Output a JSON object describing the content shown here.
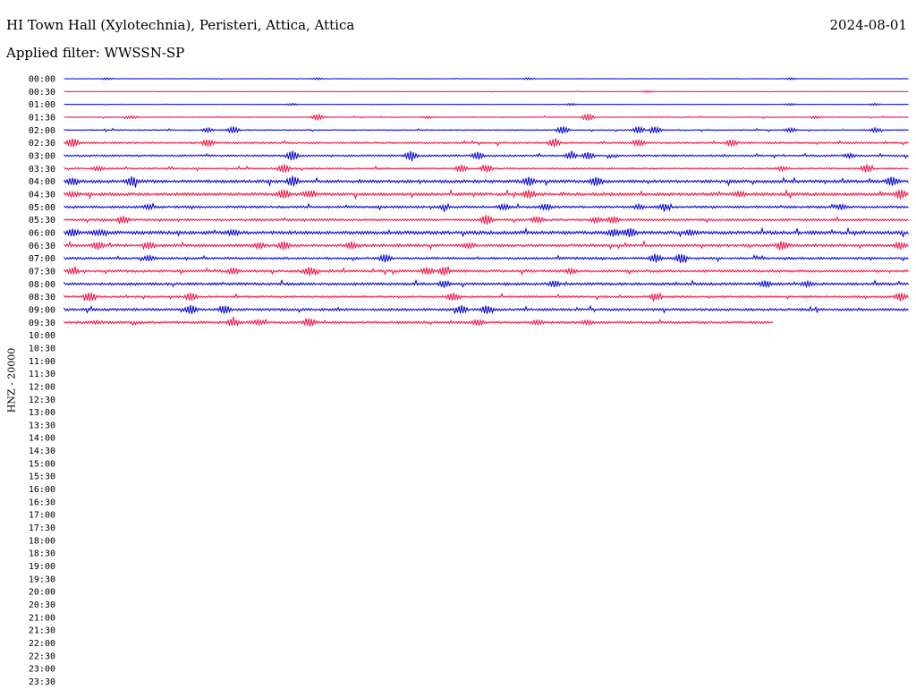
{
  "header": {
    "title": "HI Town Hall (Xylotechnia), Peristeri, Attica, Attica",
    "date": "2024-08-01",
    "filter": "Applied filter: WWSSN-SP"
  },
  "y_axis_label": "HNZ - 20000",
  "colors": {
    "even_rows": "#0000cc",
    "odd_rows": "#ee1144",
    "background": "#fefefe"
  },
  "chart_data": {
    "type": "line",
    "title": "HI Town Hall (Xylotechnia), Peristeri, Attica, Attica",
    "xlabel": "",
    "ylabel": "HNZ - 20000",
    "row_labels": [
      "00:00",
      "00:30",
      "01:00",
      "01:30",
      "02:00",
      "02:30",
      "03:00",
      "03:30",
      "04:00",
      "04:30",
      "05:00",
      "05:30",
      "06:00",
      "06:30",
      "07:00",
      "07:30",
      "08:00",
      "08:30",
      "09:00",
      "09:30",
      "10:00",
      "10:30",
      "11:00",
      "11:30",
      "12:00",
      "12:30",
      "13:00",
      "13:30",
      "14:00",
      "14:30",
      "15:00",
      "15:30",
      "16:00",
      "16:30",
      "17:00",
      "17:30",
      "18:00",
      "18:30",
      "19:00",
      "19:30",
      "20:00",
      "20:30",
      "21:00",
      "21:30",
      "22:00",
      "22:30",
      "23:00",
      "23:30"
    ],
    "row_minutes": 30,
    "recorded_rows": 20,
    "last_row_fraction": 0.84,
    "noise_level": [
      0.2,
      0.2,
      0.2,
      0.5,
      0.6,
      1.0,
      1.0,
      0.9,
      1.6,
      1.6,
      1.2,
      1.2,
      1.8,
      1.5,
      1.2,
      1.3,
      1.4,
      1.1,
      1.3,
      1.3
    ],
    "events": [
      [
        [
          0.05,
          1
        ],
        [
          0.3,
          1
        ],
        [
          0.55,
          1
        ],
        [
          0.86,
          1
        ]
      ],
      [
        [
          0.69,
          1
        ]
      ],
      [
        [
          0.27,
          1
        ],
        [
          0.6,
          1
        ],
        [
          0.86,
          1
        ],
        [
          0.96,
          1
        ]
      ],
      [
        [
          0.08,
          1.2
        ],
        [
          0.3,
          3
        ],
        [
          0.43,
          1
        ],
        [
          0.62,
          3.5
        ],
        [
          0.89,
          1
        ]
      ],
      [
        [
          0.17,
          2
        ],
        [
          0.2,
          3.5
        ],
        [
          0.59,
          4
        ],
        [
          0.68,
          3.5
        ],
        [
          0.7,
          3.5
        ],
        [
          0.86,
          2
        ],
        [
          0.96,
          2
        ]
      ],
      [
        [
          0.01,
          4.5
        ],
        [
          0.17,
          3.5
        ],
        [
          0.58,
          4
        ],
        [
          0.68,
          3
        ],
        [
          0.79,
          3
        ]
      ],
      [
        [
          0.27,
          5
        ],
        [
          0.41,
          4.5
        ],
        [
          0.49,
          3.5
        ],
        [
          0.6,
          3
        ],
        [
          0.62,
          3.5
        ],
        [
          0.93,
          2
        ]
      ],
      [
        [
          0.04,
          2
        ],
        [
          0.26,
          4.5
        ],
        [
          0.47,
          3.5
        ],
        [
          0.5,
          3.5
        ],
        [
          0.85,
          2
        ],
        [
          0.95,
          4
        ]
      ],
      [
        [
          0.01,
          3
        ],
        [
          0.08,
          4.5
        ],
        [
          0.27,
          5
        ],
        [
          0.55,
          3.5
        ],
        [
          0.63,
          4.5
        ],
        [
          0.98,
          4.5
        ]
      ],
      [
        [
          0.01,
          2
        ],
        [
          0.26,
          4.5
        ],
        [
          0.29,
          3
        ],
        [
          0.55,
          3.5
        ],
        [
          0.8,
          2
        ],
        [
          0.99,
          4.5
        ]
      ],
      [
        [
          0.1,
          2
        ],
        [
          0.45,
          2
        ],
        [
          0.52,
          2.5
        ],
        [
          0.57,
          3
        ],
        [
          0.68,
          2
        ],
        [
          0.71,
          2.5
        ],
        [
          0.92,
          2
        ]
      ],
      [
        [
          0.07,
          3.5
        ],
        [
          0.5,
          5
        ],
        [
          0.56,
          3
        ],
        [
          0.63,
          2.5
        ],
        [
          0.65,
          3
        ]
      ],
      [
        [
          0.01,
          3.5
        ],
        [
          0.04,
          2
        ],
        [
          0.2,
          2
        ],
        [
          0.65,
          3
        ],
        [
          0.67,
          4
        ],
        [
          0.74,
          2
        ]
      ],
      [
        [
          0.04,
          3.5
        ],
        [
          0.1,
          3
        ],
        [
          0.23,
          2.5
        ],
        [
          0.26,
          4
        ],
        [
          0.34,
          3
        ],
        [
          0.48,
          2
        ],
        [
          0.85,
          4
        ],
        [
          0.99,
          3
        ]
      ],
      [
        [
          0.1,
          2
        ],
        [
          0.38,
          4
        ],
        [
          0.7,
          4
        ],
        [
          0.73,
          4.5
        ]
      ],
      [
        [
          0.01,
          3
        ],
        [
          0.2,
          3
        ],
        [
          0.29,
          4
        ],
        [
          0.43,
          3.5
        ],
        [
          0.45,
          4
        ],
        [
          0.6,
          2
        ]
      ],
      [
        [
          0.45,
          3
        ],
        [
          0.58,
          2.5
        ],
        [
          0.83,
          3
        ],
        [
          0.88,
          2
        ]
      ],
      [
        [
          0.03,
          4.5
        ],
        [
          0.15,
          4
        ],
        [
          0.46,
          4
        ],
        [
          0.7,
          3
        ],
        [
          0.99,
          4
        ]
      ],
      [
        [
          0.15,
          4.5
        ],
        [
          0.19,
          4
        ],
        [
          0.47,
          4
        ],
        [
          0.5,
          4
        ]
      ],
      [
        [
          0.04,
          1
        ],
        [
          0.2,
          3.5
        ],
        [
          0.23,
          2
        ],
        [
          0.29,
          4
        ],
        [
          0.49,
          2.5
        ],
        [
          0.56,
          2
        ],
        [
          0.62,
          2
        ]
      ]
    ]
  }
}
